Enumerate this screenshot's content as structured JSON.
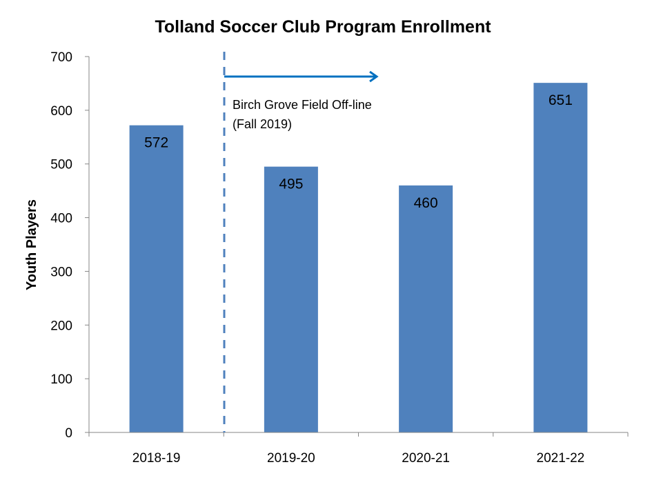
{
  "chart_data": {
    "type": "bar",
    "title": "Tolland Soccer Club Program Enrollment",
    "xlabel": "",
    "ylabel": "Youth Players",
    "categories": [
      "2018-19",
      "2019-20",
      "2020-21",
      "2021-22"
    ],
    "values": [
      572,
      495,
      460,
      651
    ],
    "data_labels": [
      "572",
      "495",
      "460",
      "651"
    ],
    "ylim": [
      0,
      700
    ],
    "yticks": [
      0,
      100,
      200,
      300,
      400,
      500,
      600,
      700
    ],
    "ytick_labels": [
      "0",
      "100",
      "200",
      "300",
      "400",
      "500",
      "600",
      "700"
    ],
    "grid": false,
    "legend": "none",
    "annotation": {
      "lines": [
        "Birch Grove Field Off-line",
        "(Fall 2019)"
      ],
      "marker_between_categories": [
        "2018-19",
        "2019-20"
      ]
    },
    "colors": {
      "bar": "#4f81bd",
      "arrow": "#0070c0",
      "marker_line": "#4f81bd",
      "axis": "#868686"
    }
  }
}
